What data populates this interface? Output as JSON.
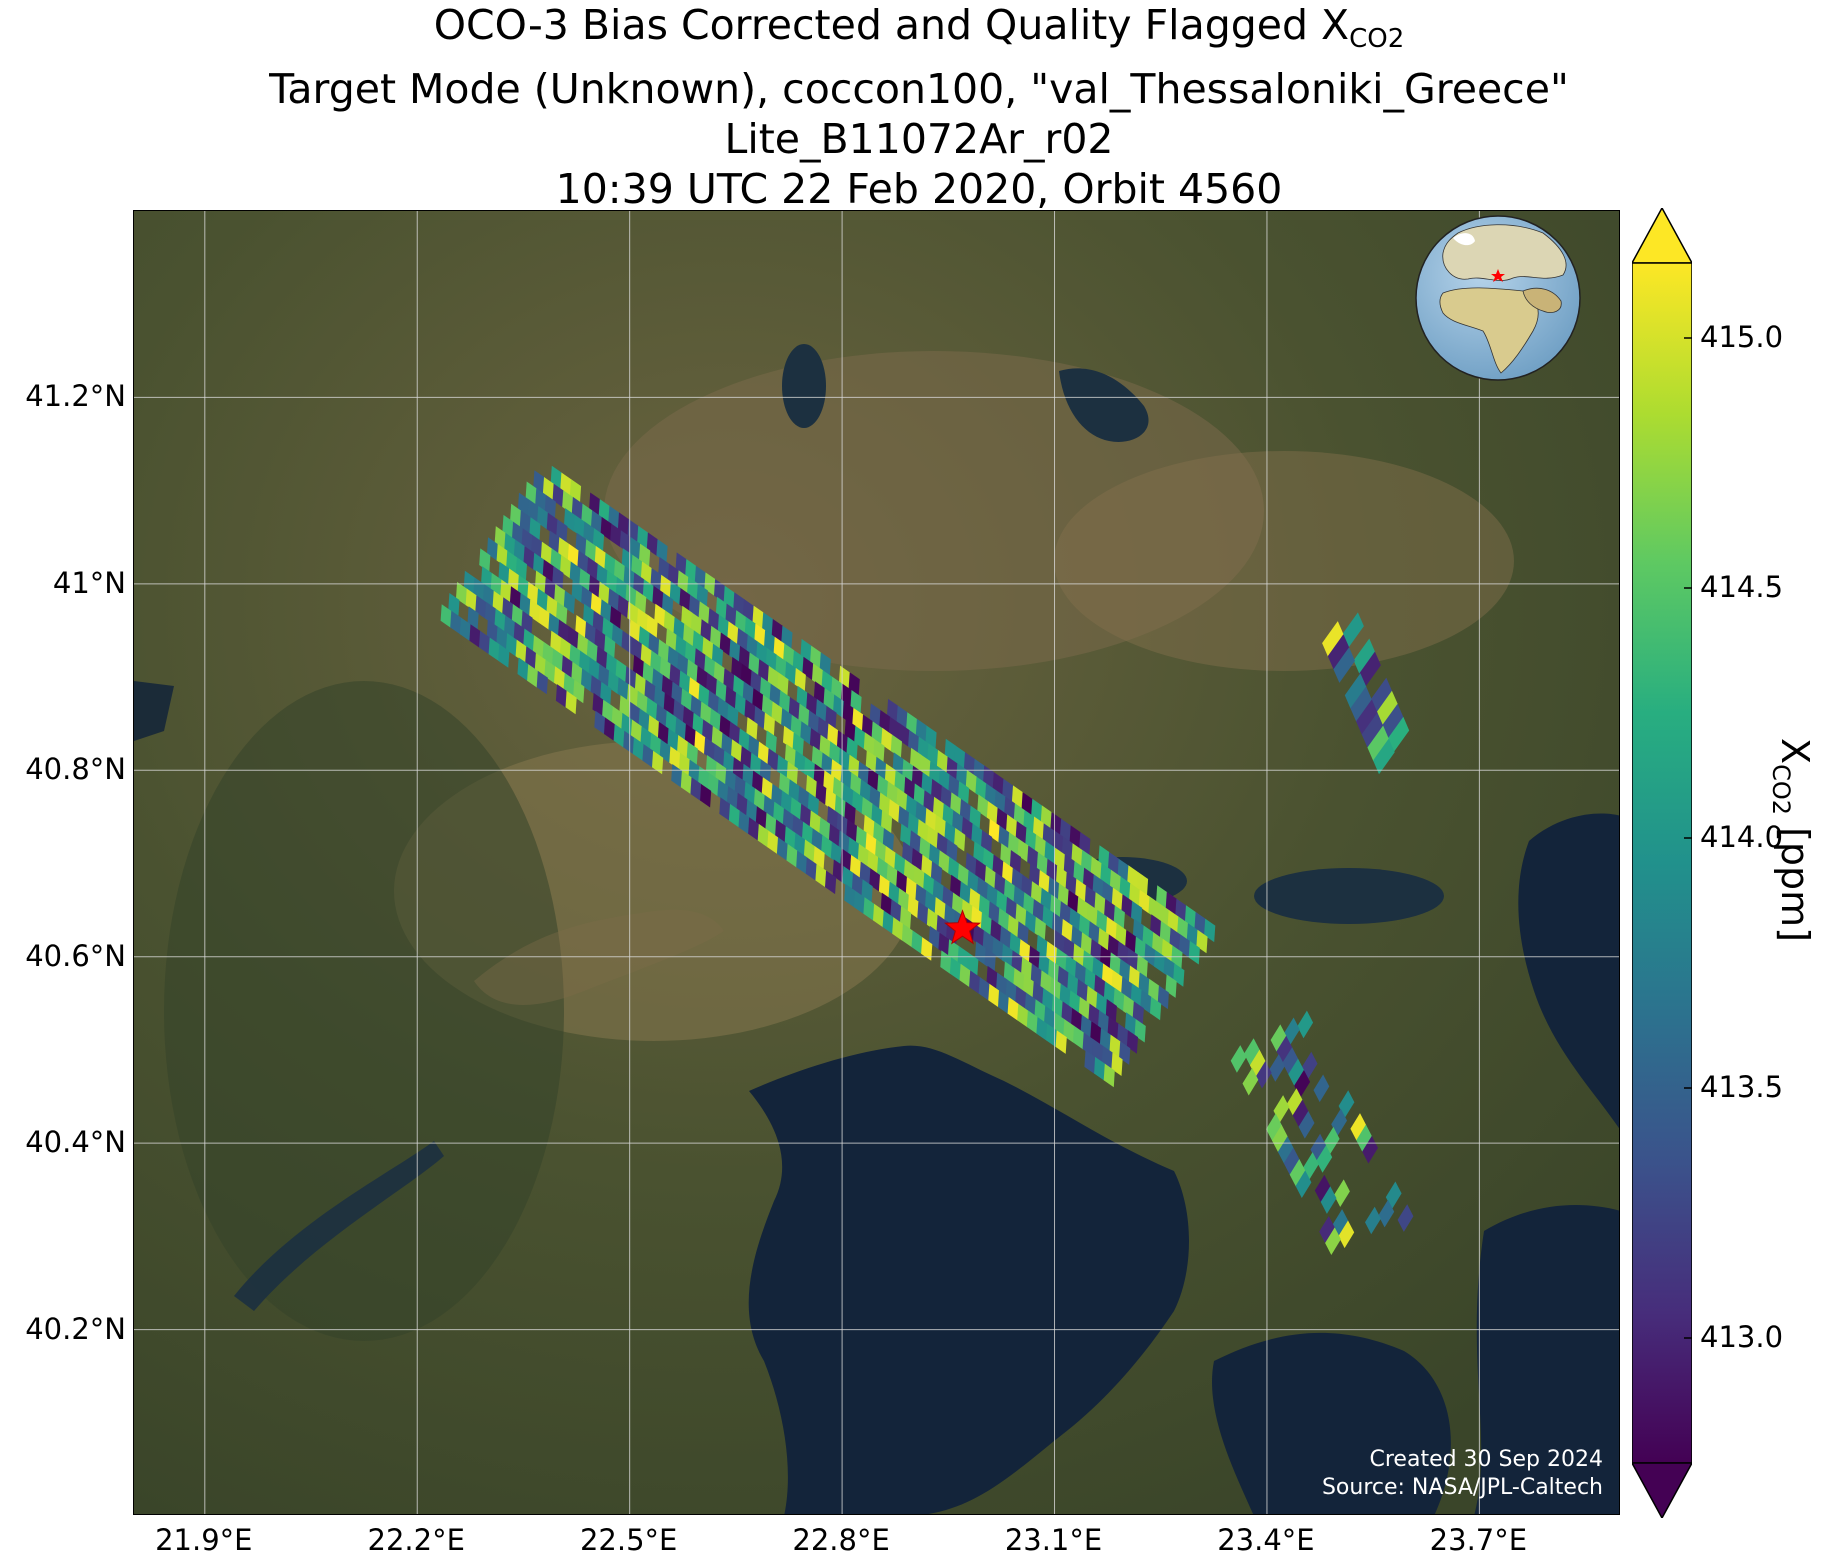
{
  "title": {
    "line1_prefix": "OCO-3 Bias Corrected and Quality Flagged X",
    "line1_sub": "CO2",
    "line2": "Target Mode (Unknown), coccon100, \"val_Thessaloniki_Greece\"",
    "line3": "Lite_B11072Ar_r02",
    "line4": "10:39 UTC 22 Feb 2020, Orbit 4560"
  },
  "map": {
    "lat_ticks": [
      "41.2°N",
      "41°N",
      "40.8°N",
      "40.6°N",
      "40.4°N",
      "40.2°N"
    ],
    "lat_values": [
      41.2,
      41.0,
      40.8,
      40.6,
      40.4,
      40.2
    ],
    "lon_ticks": [
      "21.9°E",
      "22.2°E",
      "22.5°E",
      "22.8°E",
      "23.1°E",
      "23.4°E",
      "23.7°E"
    ],
    "lon_values": [
      21.9,
      22.2,
      22.5,
      22.8,
      23.1,
      23.4,
      23.7
    ],
    "lon_range": [
      21.8,
      23.9
    ],
    "lat_range": [
      40.0,
      41.4
    ],
    "target_marker": {
      "name": "val_Thessaloniki_Greece",
      "lon": 22.97,
      "lat": 40.63,
      "color": "#ff0000"
    },
    "gridlines": true,
    "basemap": "satellite imagery",
    "credit_line1": "Created 30 Sep 2024",
    "credit_line2": "Source: NASA/JPL-Caltech"
  },
  "colorbar": {
    "label_prefix": "X",
    "label_sub": "CO2",
    "label_suffix": " [ppm]",
    "ticks": [
      "415.0",
      "414.5",
      "414.0",
      "413.5",
      "413.0"
    ],
    "tick_values": [
      415.0,
      414.5,
      414.0,
      413.5,
      413.0
    ],
    "range": [
      412.75,
      415.15
    ],
    "colormap": "viridis",
    "extend": "both"
  },
  "chart_data": {
    "type": "scatter",
    "title": "OCO-3 Bias Corrected and Quality Flagged XCO2",
    "units": "ppm",
    "ylabel": "XCO2 [ppm]",
    "swath_center_line": [
      [
        22.3,
        41.05
      ],
      [
        23.25,
        40.55
      ]
    ],
    "extra_swath_center_line": [
      [
        23.4,
        40.52
      ],
      [
        23.55,
        40.3
      ]
    ],
    "side_strip_center_line": [
      [
        23.5,
        40.96
      ],
      [
        23.58,
        40.82
      ]
    ],
    "value_range_ppm": [
      412.75,
      415.15
    ]
  },
  "colors": {
    "sea": "#13243a",
    "land_dark": "#3f4d2b",
    "land_mid": "#6b6440",
    "land_light": "#8a7552",
    "gridline": "#d8d8d8",
    "marker": "#ff0000"
  }
}
